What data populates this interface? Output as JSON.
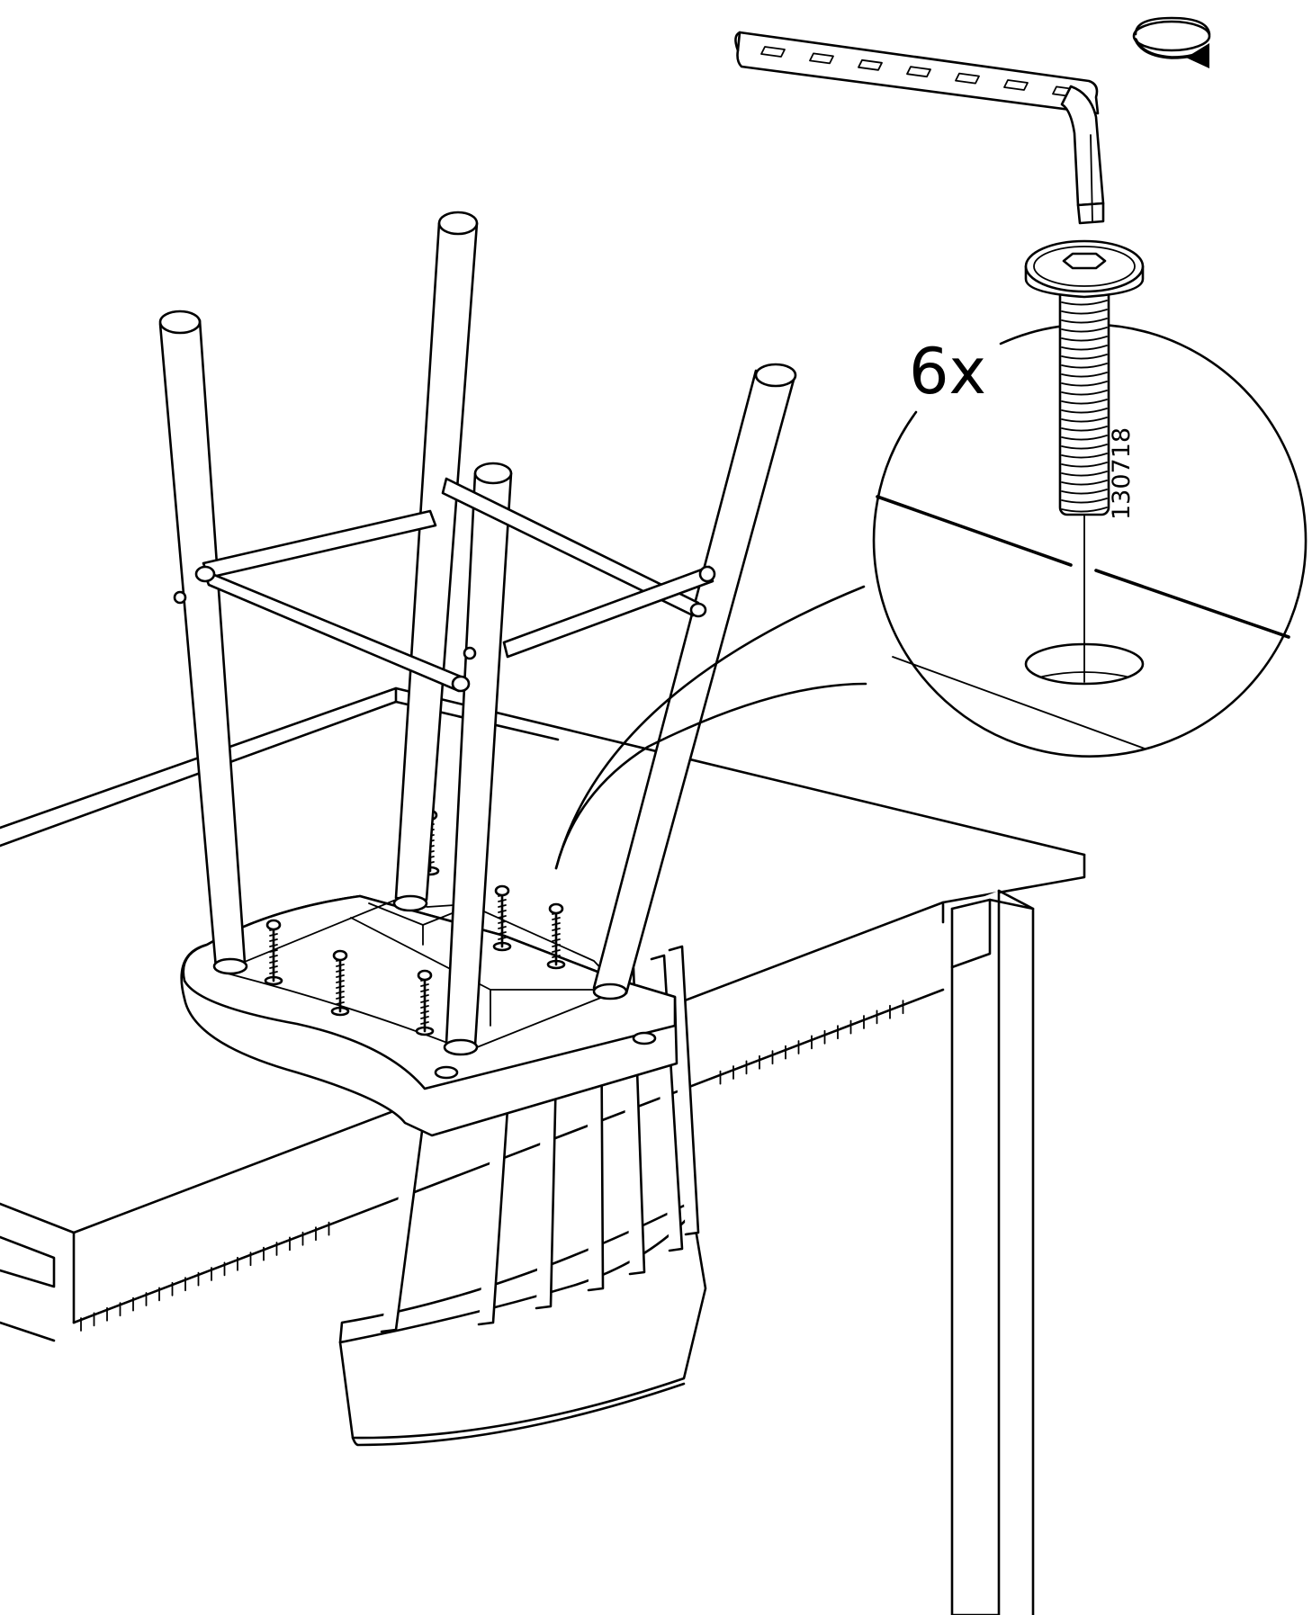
{
  "step": {
    "quantity_label": "6x",
    "part_number": "130718",
    "icons": {
      "tool": "allen-key-icon",
      "rotation": "clockwise-rotation-icon",
      "fastener": "hex-socket-bolt-icon"
    },
    "colors": {
      "ink": "#000000",
      "paper": "#ffffff"
    }
  }
}
